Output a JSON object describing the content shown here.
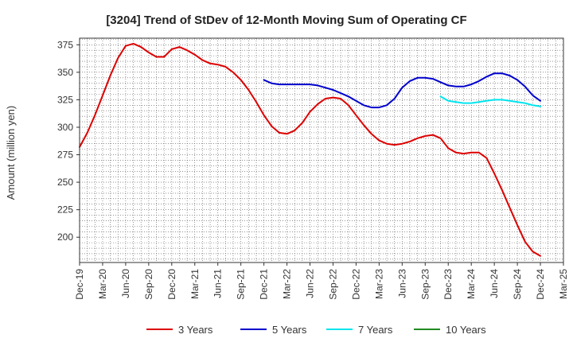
{
  "chart_data": {
    "type": "line",
    "title": "[3204]  Trend of StDev of 12-Month Moving Sum of Operating CF",
    "xlabel": "",
    "ylabel": "Amount (million yen)",
    "x_ticks": [
      "Dec-19",
      "Mar-20",
      "Jun-20",
      "Sep-20",
      "Dec-20",
      "Mar-21",
      "Jun-21",
      "Sep-21",
      "Dec-21",
      "Mar-22",
      "Jun-22",
      "Sep-22",
      "Dec-22",
      "Mar-23",
      "Jun-23",
      "Sep-23",
      "Dec-23",
      "Mar-24",
      "Jun-24",
      "Sep-24",
      "Dec-24",
      "Mar-25"
    ],
    "y_ticks": [
      200,
      225,
      250,
      275,
      300,
      325,
      350,
      375
    ],
    "ylim": [
      177,
      381
    ],
    "grid": true,
    "legend_position": "bottom",
    "series": [
      {
        "name": "3 Years",
        "color": "#dd0000",
        "values": [
          [
            "Dec-19",
            282
          ],
          [
            "Jan-20",
            295
          ],
          [
            "Feb-20",
            311
          ],
          [
            "Mar-20",
            329
          ],
          [
            "Apr-20",
            347
          ],
          [
            "May-20",
            363
          ],
          [
            "Jun-20",
            374
          ],
          [
            "Jul-20",
            376
          ],
          [
            "Aug-20",
            373
          ],
          [
            "Sep-20",
            368
          ],
          [
            "Oct-20",
            364
          ],
          [
            "Nov-20",
            364
          ],
          [
            "Dec-20",
            371
          ],
          [
            "Jan-21",
            373
          ],
          [
            "Feb-21",
            370
          ],
          [
            "Mar-21",
            366
          ],
          [
            "Apr-21",
            361
          ],
          [
            "May-21",
            358
          ],
          [
            "Jun-21",
            357
          ],
          [
            "Jul-21",
            355
          ],
          [
            "Aug-21",
            350
          ],
          [
            "Sep-21",
            343
          ],
          [
            "Oct-21",
            334
          ],
          [
            "Nov-21",
            323
          ],
          [
            "Dec-21",
            311
          ],
          [
            "Jan-22",
            301
          ],
          [
            "Feb-22",
            295
          ],
          [
            "Mar-22",
            294
          ],
          [
            "Apr-22",
            297
          ],
          [
            "May-22",
            304
          ],
          [
            "Jun-22",
            314
          ],
          [
            "Jul-22",
            321
          ],
          [
            "Aug-22",
            326
          ],
          [
            "Sep-22",
            327
          ],
          [
            "Oct-22",
            326
          ],
          [
            "Nov-22",
            320
          ],
          [
            "Dec-22",
            311
          ],
          [
            "Jan-23",
            302
          ],
          [
            "Feb-23",
            294
          ],
          [
            "Mar-23",
            288
          ],
          [
            "Apr-23",
            285
          ],
          [
            "May-23",
            284
          ],
          [
            "Jun-23",
            285
          ],
          [
            "Jul-23",
            287
          ],
          [
            "Aug-23",
            290
          ],
          [
            "Sep-23",
            292
          ],
          [
            "Oct-23",
            293
          ],
          [
            "Nov-23",
            290
          ],
          [
            "Dec-23",
            281
          ],
          [
            "Jan-24",
            277
          ],
          [
            "Feb-24",
            276
          ],
          [
            "Mar-24",
            277
          ],
          [
            "Apr-24",
            277
          ],
          [
            "May-24",
            272
          ],
          [
            "Jun-24",
            258
          ],
          [
            "Jul-24",
            243
          ],
          [
            "Aug-24",
            227
          ],
          [
            "Sep-24",
            211
          ],
          [
            "Oct-24",
            196
          ],
          [
            "Nov-24",
            187
          ],
          [
            "Dec-24",
            183
          ]
        ]
      },
      {
        "name": "5 Years",
        "color": "#0000cc",
        "values": [
          [
            "Dec-21",
            343
          ],
          [
            "Jan-22",
            340
          ],
          [
            "Feb-22",
            339
          ],
          [
            "Mar-22",
            339
          ],
          [
            "Apr-22",
            339
          ],
          [
            "May-22",
            339
          ],
          [
            "Jun-22",
            339
          ],
          [
            "Jul-22",
            338
          ],
          [
            "Aug-22",
            336
          ],
          [
            "Sep-22",
            334
          ],
          [
            "Oct-22",
            331
          ],
          [
            "Nov-22",
            328
          ],
          [
            "Dec-22",
            324
          ],
          [
            "Jan-23",
            320
          ],
          [
            "Feb-23",
            318
          ],
          [
            "Mar-23",
            318
          ],
          [
            "Apr-23",
            320
          ],
          [
            "May-23",
            326
          ],
          [
            "Jun-23",
            336
          ],
          [
            "Jul-23",
            342
          ],
          [
            "Aug-23",
            345
          ],
          [
            "Sep-23",
            345
          ],
          [
            "Oct-23",
            344
          ],
          [
            "Nov-23",
            341
          ],
          [
            "Dec-23",
            338
          ],
          [
            "Jan-24",
            337
          ],
          [
            "Feb-24",
            337
          ],
          [
            "Mar-24",
            339
          ],
          [
            "Apr-24",
            342
          ],
          [
            "May-24",
            346
          ],
          [
            "Jun-24",
            349
          ],
          [
            "Jul-24",
            349
          ],
          [
            "Aug-24",
            347
          ],
          [
            "Sep-24",
            343
          ],
          [
            "Oct-24",
            337
          ],
          [
            "Nov-24",
            329
          ],
          [
            "Dec-24",
            324
          ]
        ]
      },
      {
        "name": "7 Years",
        "color": "#00e5ee",
        "values": [
          [
            "Nov-23",
            328
          ],
          [
            "Dec-23",
            324
          ],
          [
            "Jan-24",
            323
          ],
          [
            "Feb-24",
            322
          ],
          [
            "Mar-24",
            322
          ],
          [
            "Apr-24",
            323
          ],
          [
            "May-24",
            324
          ],
          [
            "Jun-24",
            325
          ],
          [
            "Jul-24",
            325
          ],
          [
            "Aug-24",
            324
          ],
          [
            "Sep-24",
            323
          ],
          [
            "Oct-24",
            322
          ],
          [
            "Nov-24",
            320
          ],
          [
            "Dec-24",
            319
          ]
        ]
      },
      {
        "name": "10 Years",
        "color": "#228b22",
        "values": []
      }
    ]
  }
}
